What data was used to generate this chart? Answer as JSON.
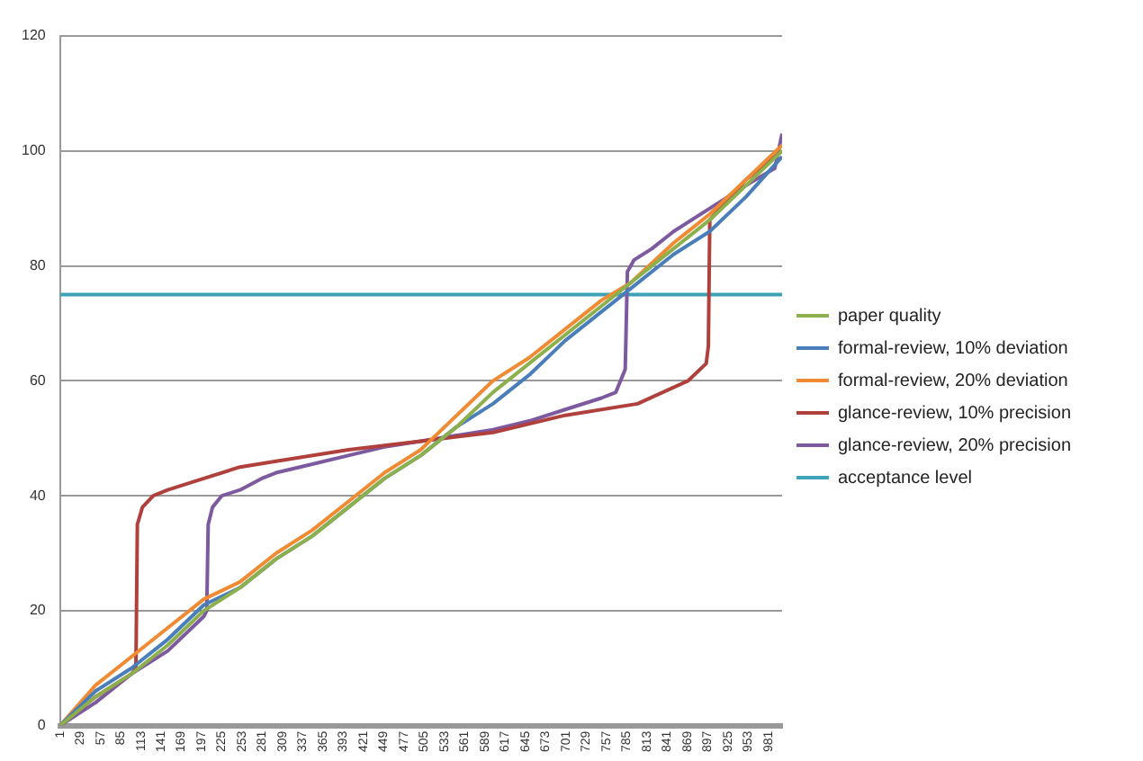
{
  "chart_data": {
    "type": "line",
    "xlim": [
      1,
      1000
    ],
    "xticks": [
      1,
      29,
      57,
      85,
      113,
      141,
      169,
      197,
      225,
      253,
      281,
      309,
      337,
      365,
      393,
      421,
      449,
      477,
      505,
      533,
      561,
      589,
      617,
      645,
      673,
      701,
      729,
      757,
      785,
      813,
      841,
      869,
      897,
      925,
      953,
      981
    ],
    "ylim": [
      0,
      120
    ],
    "yticks": [
      0,
      20,
      40,
      60,
      80,
      100,
      120
    ],
    "grid": "y",
    "legend": "right",
    "marker": "none",
    "line_style": "solid",
    "series": [
      {
        "name": "paper quality",
        "color": "#8cb04c",
        "x": [
          1,
          50,
          100,
          150,
          200,
          250,
          300,
          350,
          400,
          450,
          500,
          550,
          600,
          650,
          700,
          750,
          790,
          850,
          900,
          950,
          1000
        ],
        "values": [
          0,
          5,
          9,
          14,
          20,
          24,
          29,
          33,
          38,
          43,
          47,
          52,
          58,
          63,
          68,
          73,
          77,
          83,
          88,
          94,
          100
        ]
      },
      {
        "name": "formal-review, 10% deviation",
        "color": "#4a7ebb",
        "x": [
          1,
          50,
          100,
          150,
          200,
          250,
          300,
          350,
          400,
          450,
          500,
          550,
          600,
          650,
          700,
          750,
          790,
          850,
          900,
          950,
          1000
        ],
        "values": [
          0,
          6,
          10,
          15,
          21,
          24,
          29,
          33,
          38,
          43,
          47,
          52,
          56,
          61,
          67,
          72,
          76,
          82,
          86,
          92,
          99
        ]
      },
      {
        "name": "formal-review, 20% deviation",
        "color": "#f08a33",
        "x": [
          1,
          50,
          100,
          150,
          200,
          250,
          300,
          350,
          400,
          450,
          500,
          550,
          600,
          650,
          700,
          750,
          790,
          850,
          900,
          950,
          1000
        ],
        "values": [
          0,
          7,
          12,
          17,
          22,
          25,
          30,
          34,
          39,
          44,
          48,
          54,
          60,
          64,
          69,
          74,
          77,
          84,
          89,
          95,
          101
        ]
      },
      {
        "name": "glance-review, 10% precision",
        "color": "#b0403c",
        "x": [
          1,
          50,
          100,
          106,
          108,
          115,
          130,
          150,
          200,
          250,
          300,
          400,
          500,
          600,
          700,
          800,
          870,
          895,
          898,
          900,
          950,
          1000
        ],
        "values": [
          0,
          5,
          9,
          10,
          35,
          38,
          40,
          41,
          43,
          45,
          46,
          48,
          49.5,
          51,
          54,
          56,
          60,
          63,
          66,
          88,
          95,
          100
        ]
      },
      {
        "name": "glance-review, 20% precision",
        "color": "#7d5aa0",
        "x": [
          1,
          50,
          100,
          150,
          200,
          204,
          206,
          212,
          225,
          250,
          280,
          300,
          350,
          400,
          450,
          500,
          550,
          600,
          650,
          700,
          750,
          770,
          783,
          786,
          795,
          820,
          850,
          900,
          950,
          990,
          1000
        ],
        "values": [
          0,
          4,
          9,
          13,
          19,
          20,
          35,
          38,
          40,
          41,
          43,
          44,
          45.5,
          47,
          48.5,
          49.5,
          50.5,
          51.5,
          53,
          55,
          57,
          58,
          62,
          79,
          81,
          83,
          86,
          90,
          94,
          97,
          103
        ]
      },
      {
        "name": "acceptance level",
        "color": "#3ea3b8",
        "x": [
          1,
          1000
        ],
        "values": [
          75,
          75
        ]
      }
    ]
  }
}
